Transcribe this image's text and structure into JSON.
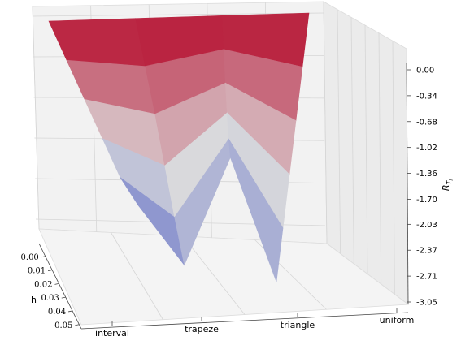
{
  "chart_data": {
    "type": "surface3d",
    "title": "",
    "xlabel": "",
    "ylabel": "h",
    "zlabel": "R_{T_l}",
    "x_categories": [
      "interval",
      "trapeze",
      "triangle",
      "uniform"
    ],
    "y_ticks": [
      "0.00",
      "0.01",
      "0.02",
      "0.03",
      "0.04",
      "0.05"
    ],
    "z_ticks": [
      "0.00",
      "-0.34",
      "-0.68",
      "-1.02",
      "-1.36",
      "-1.70",
      "-2.03",
      "-2.37",
      "-2.71",
      "-3.05"
    ],
    "zlim": [
      -3.05,
      0.0
    ],
    "colormap": "coolwarm",
    "colormap_endpoints": {
      "low": "#3b4cc0",
      "mid": "#dddddd",
      "high": "#b40426"
    },
    "surface": {
      "h": [
        0.0,
        0.01,
        0.02,
        0.03,
        0.04,
        0.05
      ],
      "series": [
        {
          "category": "interval",
          "values": [
            0.0,
            -0.45,
            -0.9,
            -1.35,
            -1.8,
            -2.1
          ]
        },
        {
          "category": "trapeze",
          "values": [
            0.0,
            -0.55,
            -1.1,
            -1.7,
            -2.3,
            -2.85
          ]
        },
        {
          "category": "triangle",
          "values": [
            0.0,
            -0.35,
            -0.7,
            -1.0,
            -1.25,
            -1.4
          ]
        },
        {
          "category": "uniform",
          "values": [
            0.0,
            -0.6,
            -1.2,
            -1.8,
            -2.4,
            -3.0
          ]
        }
      ]
    }
  }
}
